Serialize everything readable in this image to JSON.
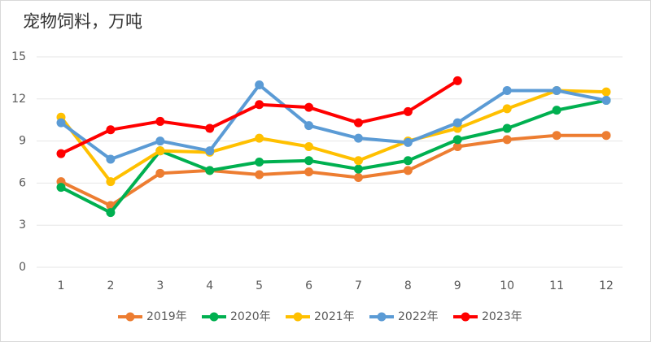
{
  "chart_data": {
    "type": "line",
    "title": "宠物饲料，万吨",
    "categories": [
      "1",
      "2",
      "3",
      "4",
      "5",
      "6",
      "7",
      "8",
      "9",
      "10",
      "11",
      "12"
    ],
    "series": [
      {
        "name": "2019年",
        "color": "#ed7d31",
        "values": [
          6.1,
          4.4,
          6.7,
          6.9,
          6.6,
          6.8,
          6.4,
          6.9,
          8.6,
          9.1,
          9.4,
          9.4
        ]
      },
      {
        "name": "2020年",
        "color": "#00b050",
        "values": [
          5.7,
          3.9,
          8.3,
          6.9,
          7.5,
          7.6,
          7.0,
          7.6,
          9.1,
          9.9,
          11.2,
          11.9
        ]
      },
      {
        "name": "2021年",
        "color": "#ffc000",
        "values": [
          10.7,
          6.1,
          8.3,
          8.2,
          9.2,
          8.6,
          7.6,
          9.0,
          9.9,
          11.3,
          12.6,
          12.5
        ]
      },
      {
        "name": "2022年",
        "color": "#5b9bd5",
        "values": [
          10.3,
          7.7,
          9.0,
          8.3,
          13.0,
          10.1,
          9.2,
          8.9,
          10.3,
          12.6,
          12.6,
          11.9
        ]
      },
      {
        "name": "2023年",
        "color": "#ff0000",
        "values": [
          8.1,
          9.8,
          10.4,
          9.9,
          11.6,
          11.4,
          10.3,
          11.1,
          13.3,
          null,
          null,
          null
        ]
      }
    ],
    "ylim": [
      0,
      15
    ],
    "yticks": [
      0,
      3,
      6,
      9,
      12,
      15
    ],
    "grid": true,
    "legend": "bottom"
  }
}
